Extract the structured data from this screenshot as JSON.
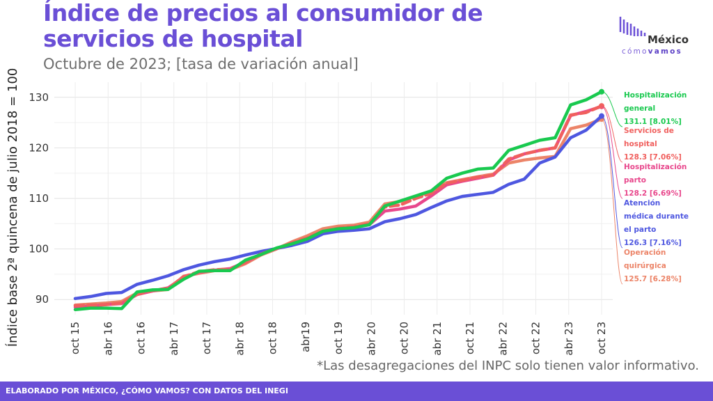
{
  "header": {
    "title": "Índice de precios al consumidor de servicios de hospital",
    "subtitle": "Octubre de 2023; [tasa de variación anual]"
  },
  "logo": {
    "line1": "México",
    "line2_part1": "cómo",
    "line2_part2": "vamos"
  },
  "note": "*Las desagregaciones del INPC solo tienen valor informativo.",
  "footer": "ELABORADO POR MÉXICO, ¿CÓMO VAMOS? CON DATOS DEL INEGI",
  "chart_data": {
    "type": "line",
    "ylabel": "Índice base 2ª quincena de julio 2018 = 100",
    "xlabel": "",
    "ylim": [
      87,
      133
    ],
    "yticks": [
      90,
      100,
      110,
      120,
      130
    ],
    "x_range": [
      "2015-10",
      "2023-10"
    ],
    "xticks": [
      "oct 15",
      "abr 16",
      "oct 16",
      "abr 17",
      "oct 17",
      "abr 18",
      "oct 18",
      "abr19",
      "oct 19",
      "abr 20",
      "oct 20",
      "abr 21",
      "oct 21",
      "abr 22",
      "oct 22",
      "abr 23",
      "oct 23"
    ],
    "grid": true,
    "series": [
      {
        "name": "Hospitalización general",
        "last_value": "131.1",
        "rate": "[8.01%]",
        "color": "#19c94f",
        "dashed": false,
        "values": [
          88.0,
          88.3,
          88.3,
          88.2,
          91.5,
          91.9,
          92.0,
          94.0,
          95.6,
          95.7,
          95.7,
          97.8,
          98.9,
          100.2,
          101.0,
          102.0,
          103.5,
          104.0,
          104.2,
          104.8,
          108.5,
          109.5,
          110.5,
          111.5,
          114.0,
          115.0,
          115.8,
          116.0,
          119.5,
          120.5,
          121.5,
          122.0,
          128.5,
          129.5,
          131.1
        ]
      },
      {
        "name": "Servicios de hospital",
        "last_value": "128.3",
        "rate": "[7.06%]",
        "color": "#f0605e",
        "dashed": true,
        "values": [
          88.8,
          88.9,
          89.0,
          89.3,
          91.0,
          91.8,
          92.2,
          94.5,
          95.5,
          95.9,
          96.0,
          97.3,
          99.0,
          100.1,
          101.2,
          102.2,
          103.5,
          104.1,
          104.4,
          105.0,
          108.3,
          108.7,
          110.0,
          111.0,
          113.0,
          113.6,
          114.2,
          114.6,
          117.8,
          118.8,
          119.5,
          120.0,
          126.5,
          127.0,
          128.3
        ]
      },
      {
        "name": "Hospitalización parto",
        "last_value": "128.2",
        "rate": "[6.69%]",
        "color": "#e8478c",
        "dashed": false,
        "values": [
          88.5,
          88.7,
          89.0,
          89.2,
          91.0,
          91.7,
          92.3,
          94.3,
          95.4,
          95.8,
          96.1,
          97.4,
          99.0,
          100.1,
          101.1,
          102.1,
          103.5,
          104.0,
          104.3,
          104.8,
          107.5,
          107.9,
          108.5,
          110.5,
          112.7,
          113.4,
          114.0,
          114.6,
          117.6,
          118.8,
          119.5,
          120.0,
          126.4,
          127.2,
          128.2
        ]
      },
      {
        "name": "Atención médica durante el parto",
        "last_value": "126.3",
        "rate": "[7.16%]",
        "color": "#4e57e0",
        "dashed": false,
        "values": [
          90.2,
          90.6,
          91.2,
          91.4,
          93.0,
          93.8,
          94.7,
          95.9,
          96.8,
          97.5,
          98.0,
          98.8,
          99.5,
          100.1,
          100.7,
          101.5,
          103.0,
          103.5,
          103.7,
          104.0,
          105.4,
          106.0,
          106.8,
          108.2,
          109.5,
          110.4,
          110.8,
          111.2,
          112.8,
          113.8,
          117.0,
          118.2,
          122.0,
          123.5,
          126.3
        ]
      },
      {
        "name": "Operación quirúrgica",
        "last_value": "125.7",
        "rate": "[6.28%]",
        "color": "#ec8468",
        "dashed": false,
        "values": [
          88.9,
          89.1,
          89.3,
          89.6,
          91.3,
          91.7,
          92.0,
          94.6,
          95.2,
          95.7,
          95.9,
          97.1,
          98.8,
          100.0,
          101.4,
          102.6,
          104.0,
          104.5,
          104.7,
          105.3,
          108.9,
          109.4,
          110.4,
          111.3,
          113.1,
          113.7,
          114.3,
          114.8,
          117.0,
          117.6,
          118.0,
          118.3,
          123.8,
          124.5,
          125.7
        ]
      }
    ]
  }
}
